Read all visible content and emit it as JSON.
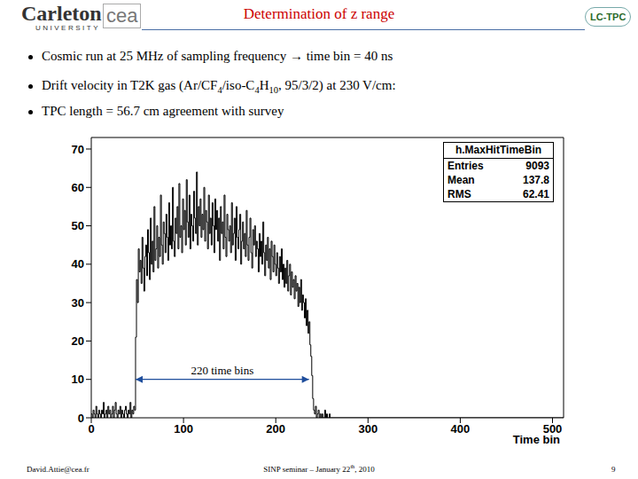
{
  "slide": {
    "title": "Determination of z range",
    "logo_left": "Carleton",
    "logo_left_sub": "UNIVERSITY",
    "logo_partner": "cea",
    "logo_right": "LC-TPC",
    "bullets": [
      [
        {
          "t": "Cosmic run at 25 MHz of sampling frequency → time bin = 40 ns"
        }
      ],
      [
        {
          "t": "Drift velocity in T2K gas (Ar/CF"
        },
        {
          "sub": "4"
        },
        {
          "t": "/iso-C"
        },
        {
          "sub": "4"
        },
        {
          "t": "H"
        },
        {
          "sub": "10"
        },
        {
          "t": ", 95/3/2) at 230 V/cm:"
        }
      ],
      [
        {
          "t": "TPC length = 56.7 cm agreement with survey"
        }
      ]
    ],
    "footer_left": "David.Attie@cea.fr",
    "footer_center": [
      {
        "t": "SINP seminar – January 22"
      },
      {
        "sup": "th"
      },
      {
        "t": ", 2010"
      }
    ],
    "footer_right": "9"
  },
  "chart_data": {
    "type": "histogram",
    "x_label": "Time bin",
    "color": "#000000",
    "stats": {
      "title": "h.MaxHitTimeBin",
      "rows": [
        {
          "label": "Entries",
          "value": "9093"
        },
        {
          "label": "Mean",
          "value": "137.8"
        },
        {
          "label": "RMS",
          "value": "62.41"
        }
      ]
    },
    "annotation": {
      "text": "220 time bins",
      "x": [
        48,
        236
      ],
      "y": 10,
      "color": "#1f4e9c"
    },
    "xlim": [
      0,
      512
    ],
    "xticks": [
      0,
      100,
      200,
      300,
      400,
      500
    ],
    "ylim": [
      0,
      73
    ],
    "yticks": [
      0,
      10,
      20,
      30,
      40,
      50,
      60,
      70
    ],
    "grid": false,
    "bins": [
      0,
      1,
      2,
      3,
      4,
      5,
      6,
      7,
      8,
      9,
      10,
      11,
      12,
      13,
      14,
      15,
      16,
      17,
      18,
      19,
      20,
      21,
      22,
      23,
      24,
      25,
      26,
      27,
      28,
      29,
      30,
      31,
      32,
      33,
      34,
      35,
      36,
      37,
      38,
      39,
      40,
      41,
      42,
      43,
      44,
      45,
      46,
      47,
      48,
      49,
      50,
      51,
      52,
      53,
      54,
      55,
      56,
      57,
      58,
      59,
      60,
      61,
      62,
      63,
      64,
      65,
      66,
      67,
      68,
      69,
      70,
      71,
      72,
      73,
      74,
      75,
      76,
      77,
      78,
      79,
      80,
      81,
      82,
      83,
      84,
      85,
      86,
      87,
      88,
      89,
      90,
      91,
      92,
      93,
      94,
      95,
      96,
      97,
      98,
      99,
      100,
      101,
      102,
      103,
      104,
      105,
      106,
      107,
      108,
      109,
      110,
      111,
      112,
      113,
      114,
      115,
      116,
      117,
      118,
      119,
      120,
      121,
      122,
      123,
      124,
      125,
      126,
      127,
      128,
      129,
      130,
      131,
      132,
      133,
      134,
      135,
      136,
      137,
      138,
      139,
      140,
      141,
      142,
      143,
      144,
      145,
      146,
      147,
      148,
      149,
      150,
      151,
      152,
      153,
      154,
      155,
      156,
      157,
      158,
      159,
      160,
      161,
      162,
      163,
      164,
      165,
      166,
      167,
      168,
      169,
      170,
      171,
      172,
      173,
      174,
      175,
      176,
      177,
      178,
      179,
      180,
      181,
      182,
      183,
      184,
      185,
      186,
      187,
      188,
      189,
      190,
      191,
      192,
      193,
      194,
      195,
      196,
      197,
      198,
      199,
      200,
      201,
      202,
      203,
      204,
      205,
      206,
      207,
      208,
      209,
      210,
      211,
      212,
      213,
      214,
      215,
      216,
      217,
      218,
      219,
      220,
      221,
      222,
      223,
      224,
      225,
      226,
      227,
      228,
      229,
      230,
      231,
      232,
      233,
      234,
      235,
      236,
      237,
      238,
      239,
      240,
      241,
      242,
      243,
      244,
      245,
      246,
      247,
      248,
      249,
      250,
      251,
      252,
      253,
      254,
      255,
      256,
      257,
      258,
      259,
      260,
      512
    ],
    "values": [
      1,
      0,
      2,
      1,
      0,
      3,
      1,
      0,
      2,
      1,
      0,
      2,
      1,
      4,
      0,
      1,
      2,
      0,
      3,
      1,
      2,
      0,
      1,
      3,
      0,
      2,
      4,
      1,
      0,
      2,
      1,
      3,
      0,
      2,
      1,
      0,
      2,
      3,
      1,
      0,
      2,
      1,
      4,
      0,
      2,
      1,
      3,
      2,
      21,
      36,
      30,
      44,
      38,
      41,
      35,
      47,
      39,
      33,
      42,
      45,
      37,
      49,
      43,
      36,
      52,
      40,
      46,
      38,
      55,
      41,
      44,
      50,
      39,
      47,
      42,
      58,
      45,
      40,
      51,
      48,
      43,
      53,
      47,
      41,
      56,
      45,
      50,
      44,
      60,
      46,
      42,
      52,
      48,
      55,
      44,
      61,
      47,
      50,
      43,
      57,
      49,
      54,
      45,
      62,
      51,
      47,
      58,
      44,
      53,
      50,
      46,
      59,
      52,
      48,
      64,
      45,
      55,
      50,
      57,
      47,
      53,
      49,
      60,
      46,
      54,
      51,
      44,
      58,
      48,
      52,
      45,
      56,
      50,
      43,
      57,
      49,
      54,
      46,
      52,
      41,
      55,
      48,
      51,
      44,
      58,
      47,
      42,
      53,
      49,
      46,
      50,
      43,
      56,
      45,
      48,
      52,
      41,
      55,
      47,
      44,
      49,
      53,
      40,
      46,
      51,
      44,
      48,
      42,
      54,
      45,
      41,
      47,
      52,
      43,
      39,
      49,
      45,
      50,
      42,
      46,
      44,
      38,
      48,
      42,
      46,
      40,
      51,
      43,
      37,
      45,
      41,
      47,
      39,
      44,
      36,
      46,
      42,
      38,
      45,
      40,
      37,
      43,
      39,
      35,
      42,
      38,
      44,
      36,
      40,
      34,
      39,
      35,
      41,
      33,
      37,
      40,
      32,
      38,
      34,
      36,
      31,
      37,
      33,
      35,
      29,
      34,
      30,
      36,
      28,
      32,
      30,
      26,
      31,
      24,
      28,
      22,
      25,
      19,
      16,
      11,
      5,
      2,
      1,
      3,
      0,
      1,
      2,
      0,
      1,
      0,
      1,
      0,
      0,
      2,
      0,
      1,
      0,
      0,
      1,
      0,
      0
    ]
  }
}
